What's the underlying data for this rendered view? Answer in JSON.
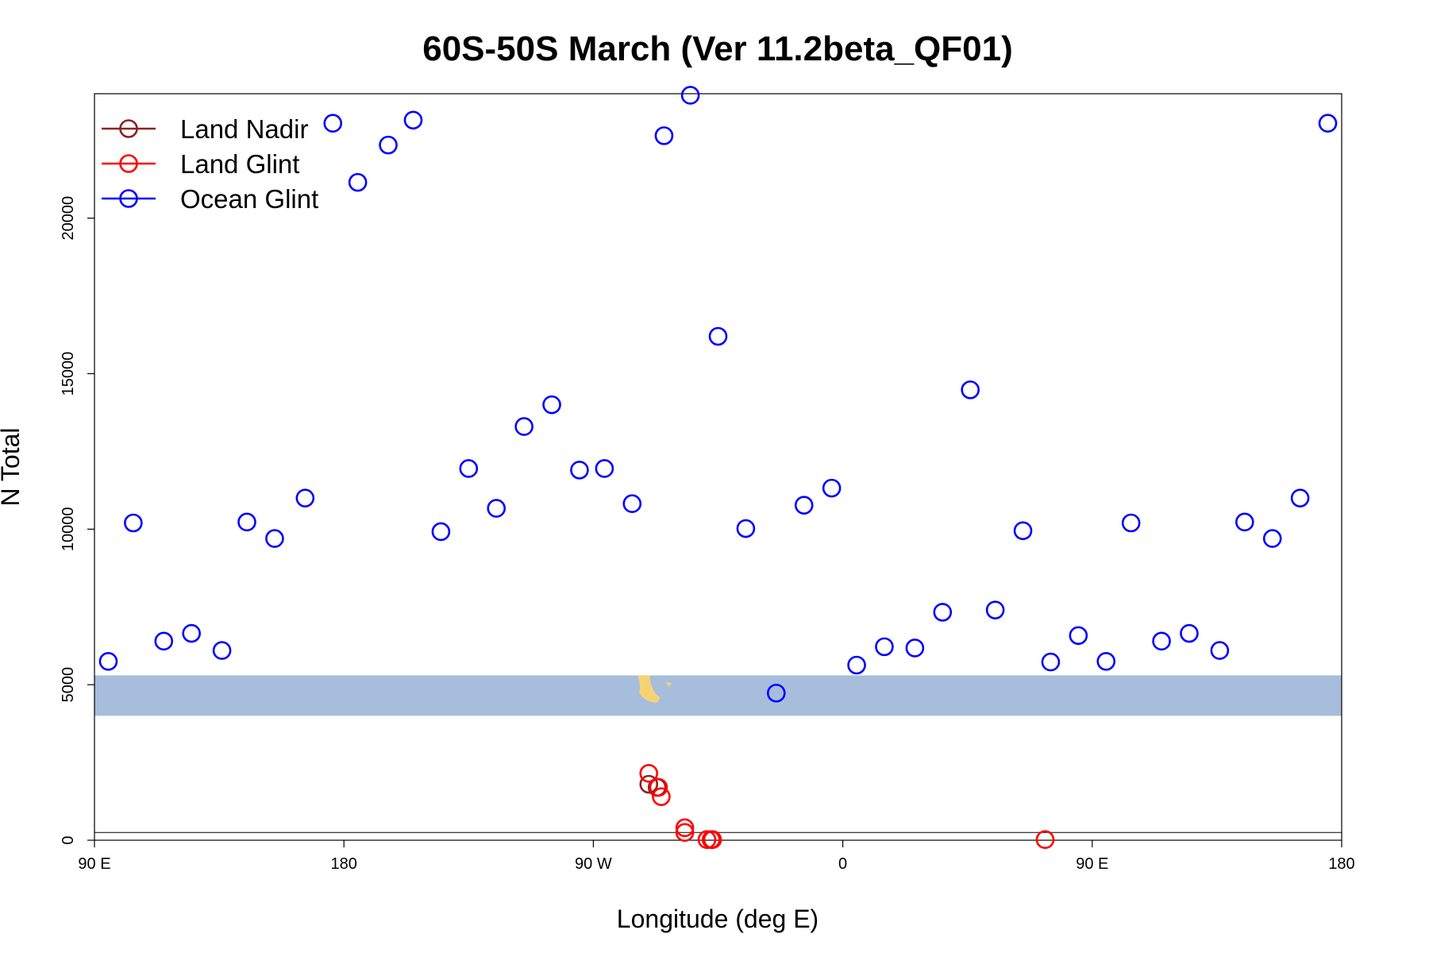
{
  "chart_data": {
    "type": "scatter",
    "title": "60S-50S March (Ver 11.2beta_QF01)",
    "xlabel": "Longitude (deg E)",
    "ylabel": "N Total",
    "xlim": [
      90,
      540
    ],
    "ylim": [
      0,
      24000
    ],
    "x_ticks": [
      {
        "value": 90,
        "label": "90 E"
      },
      {
        "value": 180,
        "label": "180"
      },
      {
        "value": 270,
        "label": "90 W"
      },
      {
        "value": 360,
        "label": "0"
      },
      {
        "value": 450,
        "label": "90 E"
      },
      {
        "value": 540,
        "label": "180"
      }
    ],
    "y_ticks": [
      {
        "value": 0,
        "label": "0"
      },
      {
        "value": 5000,
        "label": "5000"
      },
      {
        "value": 10000,
        "label": "10000"
      },
      {
        "value": 15000,
        "label": "15000"
      },
      {
        "value": 20000,
        "label": "20000"
      }
    ],
    "grid": false,
    "legend": {
      "position": "top-left",
      "entries": [
        "Land Nadir",
        "Land Glint",
        "Ocean Glint"
      ]
    },
    "reference_line": 250,
    "map_strip": {
      "y_range": [
        4000,
        5300
      ],
      "ocean_color": "#a7bddc",
      "land_color": "#f5d375"
    },
    "series": [
      {
        "name": "Land Nadir",
        "color": "#8b2323",
        "points": [
          {
            "x": 290,
            "y": 1800
          },
          {
            "x": 293,
            "y": 1700
          }
        ]
      },
      {
        "name": "Land Glint",
        "color": "#ff0000",
        "points": [
          {
            "x": 290,
            "y": 2150
          },
          {
            "x": 293.5,
            "y": 1700
          },
          {
            "x": 294.5,
            "y": 1400
          },
          {
            "x": 303,
            "y": 250
          },
          {
            "x": 303,
            "y": 400
          },
          {
            "x": 311,
            "y": 20
          },
          {
            "x": 312.5,
            "y": 20
          },
          {
            "x": 313,
            "y": 20
          },
          {
            "x": 433,
            "y": 20
          }
        ]
      },
      {
        "name": "Ocean Glint",
        "color": "#0000ff",
        "points": [
          {
            "x": 95,
            "y": 5750
          },
          {
            "x": 104,
            "y": 10200
          },
          {
            "x": 115,
            "y": 6400
          },
          {
            "x": 125,
            "y": 6650
          },
          {
            "x": 136,
            "y": 6100
          },
          {
            "x": 145,
            "y": 10230
          },
          {
            "x": 155,
            "y": 9700
          },
          {
            "x": 166,
            "y": 11000
          },
          {
            "x": 176,
            "y": 23050
          },
          {
            "x": 185,
            "y": 21150
          },
          {
            "x": 196,
            "y": 22350
          },
          {
            "x": 205,
            "y": 23150
          },
          {
            "x": 215,
            "y": 9920
          },
          {
            "x": 225,
            "y": 11950
          },
          {
            "x": 235,
            "y": 10670
          },
          {
            "x": 245,
            "y": 13300
          },
          {
            "x": 255,
            "y": 14000
          },
          {
            "x": 265,
            "y": 11900
          },
          {
            "x": 274,
            "y": 11950
          },
          {
            "x": 284,
            "y": 10820
          },
          {
            "x": 295.5,
            "y": 22650
          },
          {
            "x": 305,
            "y": 23950
          },
          {
            "x": 315,
            "y": 16200
          },
          {
            "x": 325,
            "y": 10020
          },
          {
            "x": 336,
            "y": 4730
          },
          {
            "x": 346,
            "y": 10770
          },
          {
            "x": 356,
            "y": 11320
          },
          {
            "x": 365,
            "y": 5630
          },
          {
            "x": 375,
            "y": 6220
          },
          {
            "x": 386,
            "y": 6180
          },
          {
            "x": 396,
            "y": 7330
          },
          {
            "x": 406,
            "y": 14480
          },
          {
            "x": 415,
            "y": 7400
          },
          {
            "x": 425,
            "y": 9950
          },
          {
            "x": 435,
            "y": 5730
          },
          {
            "x": 445,
            "y": 6580
          },
          {
            "x": 455,
            "y": 5750
          },
          {
            "x": 464,
            "y": 10200
          },
          {
            "x": 475,
            "y": 6400
          },
          {
            "x": 485,
            "y": 6650
          },
          {
            "x": 496,
            "y": 6100
          },
          {
            "x": 505,
            "y": 10230
          },
          {
            "x": 515,
            "y": 9700
          },
          {
            "x": 525,
            "y": 11000
          },
          {
            "x": 535,
            "y": 23050
          }
        ]
      }
    ]
  }
}
